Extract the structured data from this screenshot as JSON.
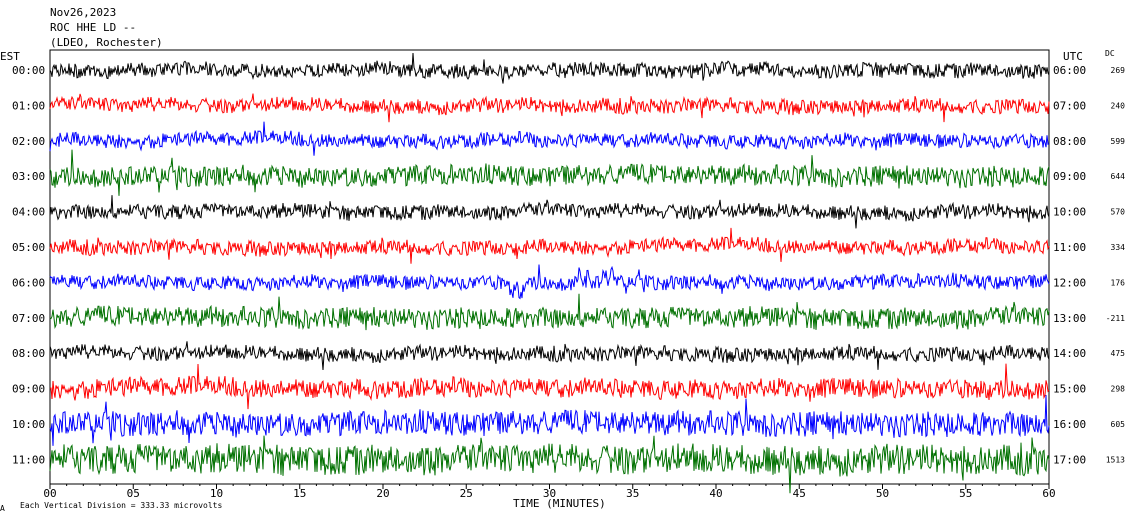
{
  "header": {
    "date": "Nov26,2023",
    "station": "ROC HHE LD --",
    "network": "(LDEO, Rochester)"
  },
  "axes": {
    "left_label": "EST",
    "right_label": "UTC",
    "dc_label": "DC",
    "xlabel": "TIME (MINUTES)",
    "footer": "Each Vertical Division =  333.33 microvolts",
    "corner_mark": "A"
  },
  "colors": {
    "cycle": [
      "#000000",
      "#ff0000",
      "#0000ff",
      "#007000"
    ],
    "frame": "#000000"
  },
  "chart_data": {
    "type": "line",
    "description_kind": "helicorder",
    "x_ticks": [
      "00",
      "05",
      "10",
      "15",
      "20",
      "25",
      "30",
      "35",
      "40",
      "45",
      "50",
      "55",
      "60"
    ],
    "xlim": [
      0,
      60
    ],
    "rows": [
      {
        "est": "00:00",
        "utc": "06:00",
        "dc": "269"
      },
      {
        "est": "01:00",
        "utc": "07:00",
        "dc": "240"
      },
      {
        "est": "02:00",
        "utc": "08:00",
        "dc": "599"
      },
      {
        "est": "03:00",
        "utc": "09:00",
        "dc": "644"
      },
      {
        "est": "04:00",
        "utc": "10:00",
        "dc": "570"
      },
      {
        "est": "05:00",
        "utc": "11:00",
        "dc": "334"
      },
      {
        "est": "06:00",
        "utc": "12:00",
        "dc": "176"
      },
      {
        "est": "07:00",
        "utc": "13:00",
        "dc": "-211"
      },
      {
        "est": "08:00",
        "utc": "14:00",
        "dc": "475"
      },
      {
        "est": "09:00",
        "utc": "15:00",
        "dc": "298"
      },
      {
        "est": "10:00",
        "utc": "16:00",
        "dc": "605"
      },
      {
        "est": "11:00",
        "utc": "17:00",
        "dc": "1513"
      }
    ],
    "events": [
      {
        "row": 6,
        "minute": 28.0
      },
      {
        "row": 6,
        "minute": 32.0
      },
      {
        "row": 6,
        "minute": 33.5
      }
    ]
  }
}
